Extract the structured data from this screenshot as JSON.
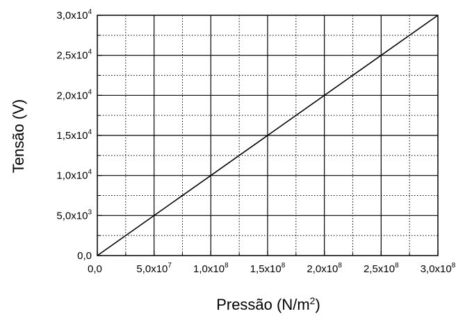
{
  "chart_data": {
    "type": "line",
    "title": "",
    "xlabel": {
      "base": "Pressão (N/m",
      "sup": "2",
      "end": ")"
    },
    "ylabel": "Tensão (V)",
    "xlim": [
      0,
      300000000
    ],
    "ylim": [
      0,
      30000
    ],
    "grid": true,
    "x_ticks": [
      {
        "value": 0,
        "mant": "0,0",
        "exp": ""
      },
      {
        "value": 50000000,
        "mant": "5,0x10",
        "exp": "7"
      },
      {
        "value": 100000000,
        "mant": "1,0x10",
        "exp": "8"
      },
      {
        "value": 150000000,
        "mant": "1,5x10",
        "exp": "8"
      },
      {
        "value": 200000000,
        "mant": "2,0x10",
        "exp": "8"
      },
      {
        "value": 250000000,
        "mant": "2,5x10",
        "exp": "8"
      },
      {
        "value": 300000000,
        "mant": "3,0x10",
        "exp": "8"
      }
    ],
    "y_ticks": [
      {
        "value": 0,
        "mant": "0,0",
        "exp": ""
      },
      {
        "value": 5000,
        "mant": "5,0x10",
        "exp": "3"
      },
      {
        "value": 10000,
        "mant": "1,0x10",
        "exp": "4"
      },
      {
        "value": 15000,
        "mant": "1,5x10",
        "exp": "4"
      },
      {
        "value": 20000,
        "mant": "2,0x10",
        "exp": "4"
      },
      {
        "value": 25000,
        "mant": "2,5x10",
        "exp": "4"
      },
      {
        "value": 30000,
        "mant": "3,0x10",
        "exp": "4"
      }
    ],
    "series": [
      {
        "x": [
          0,
          300000000
        ],
        "y": [
          0,
          30000
        ],
        "color": "#000000"
      }
    ]
  }
}
